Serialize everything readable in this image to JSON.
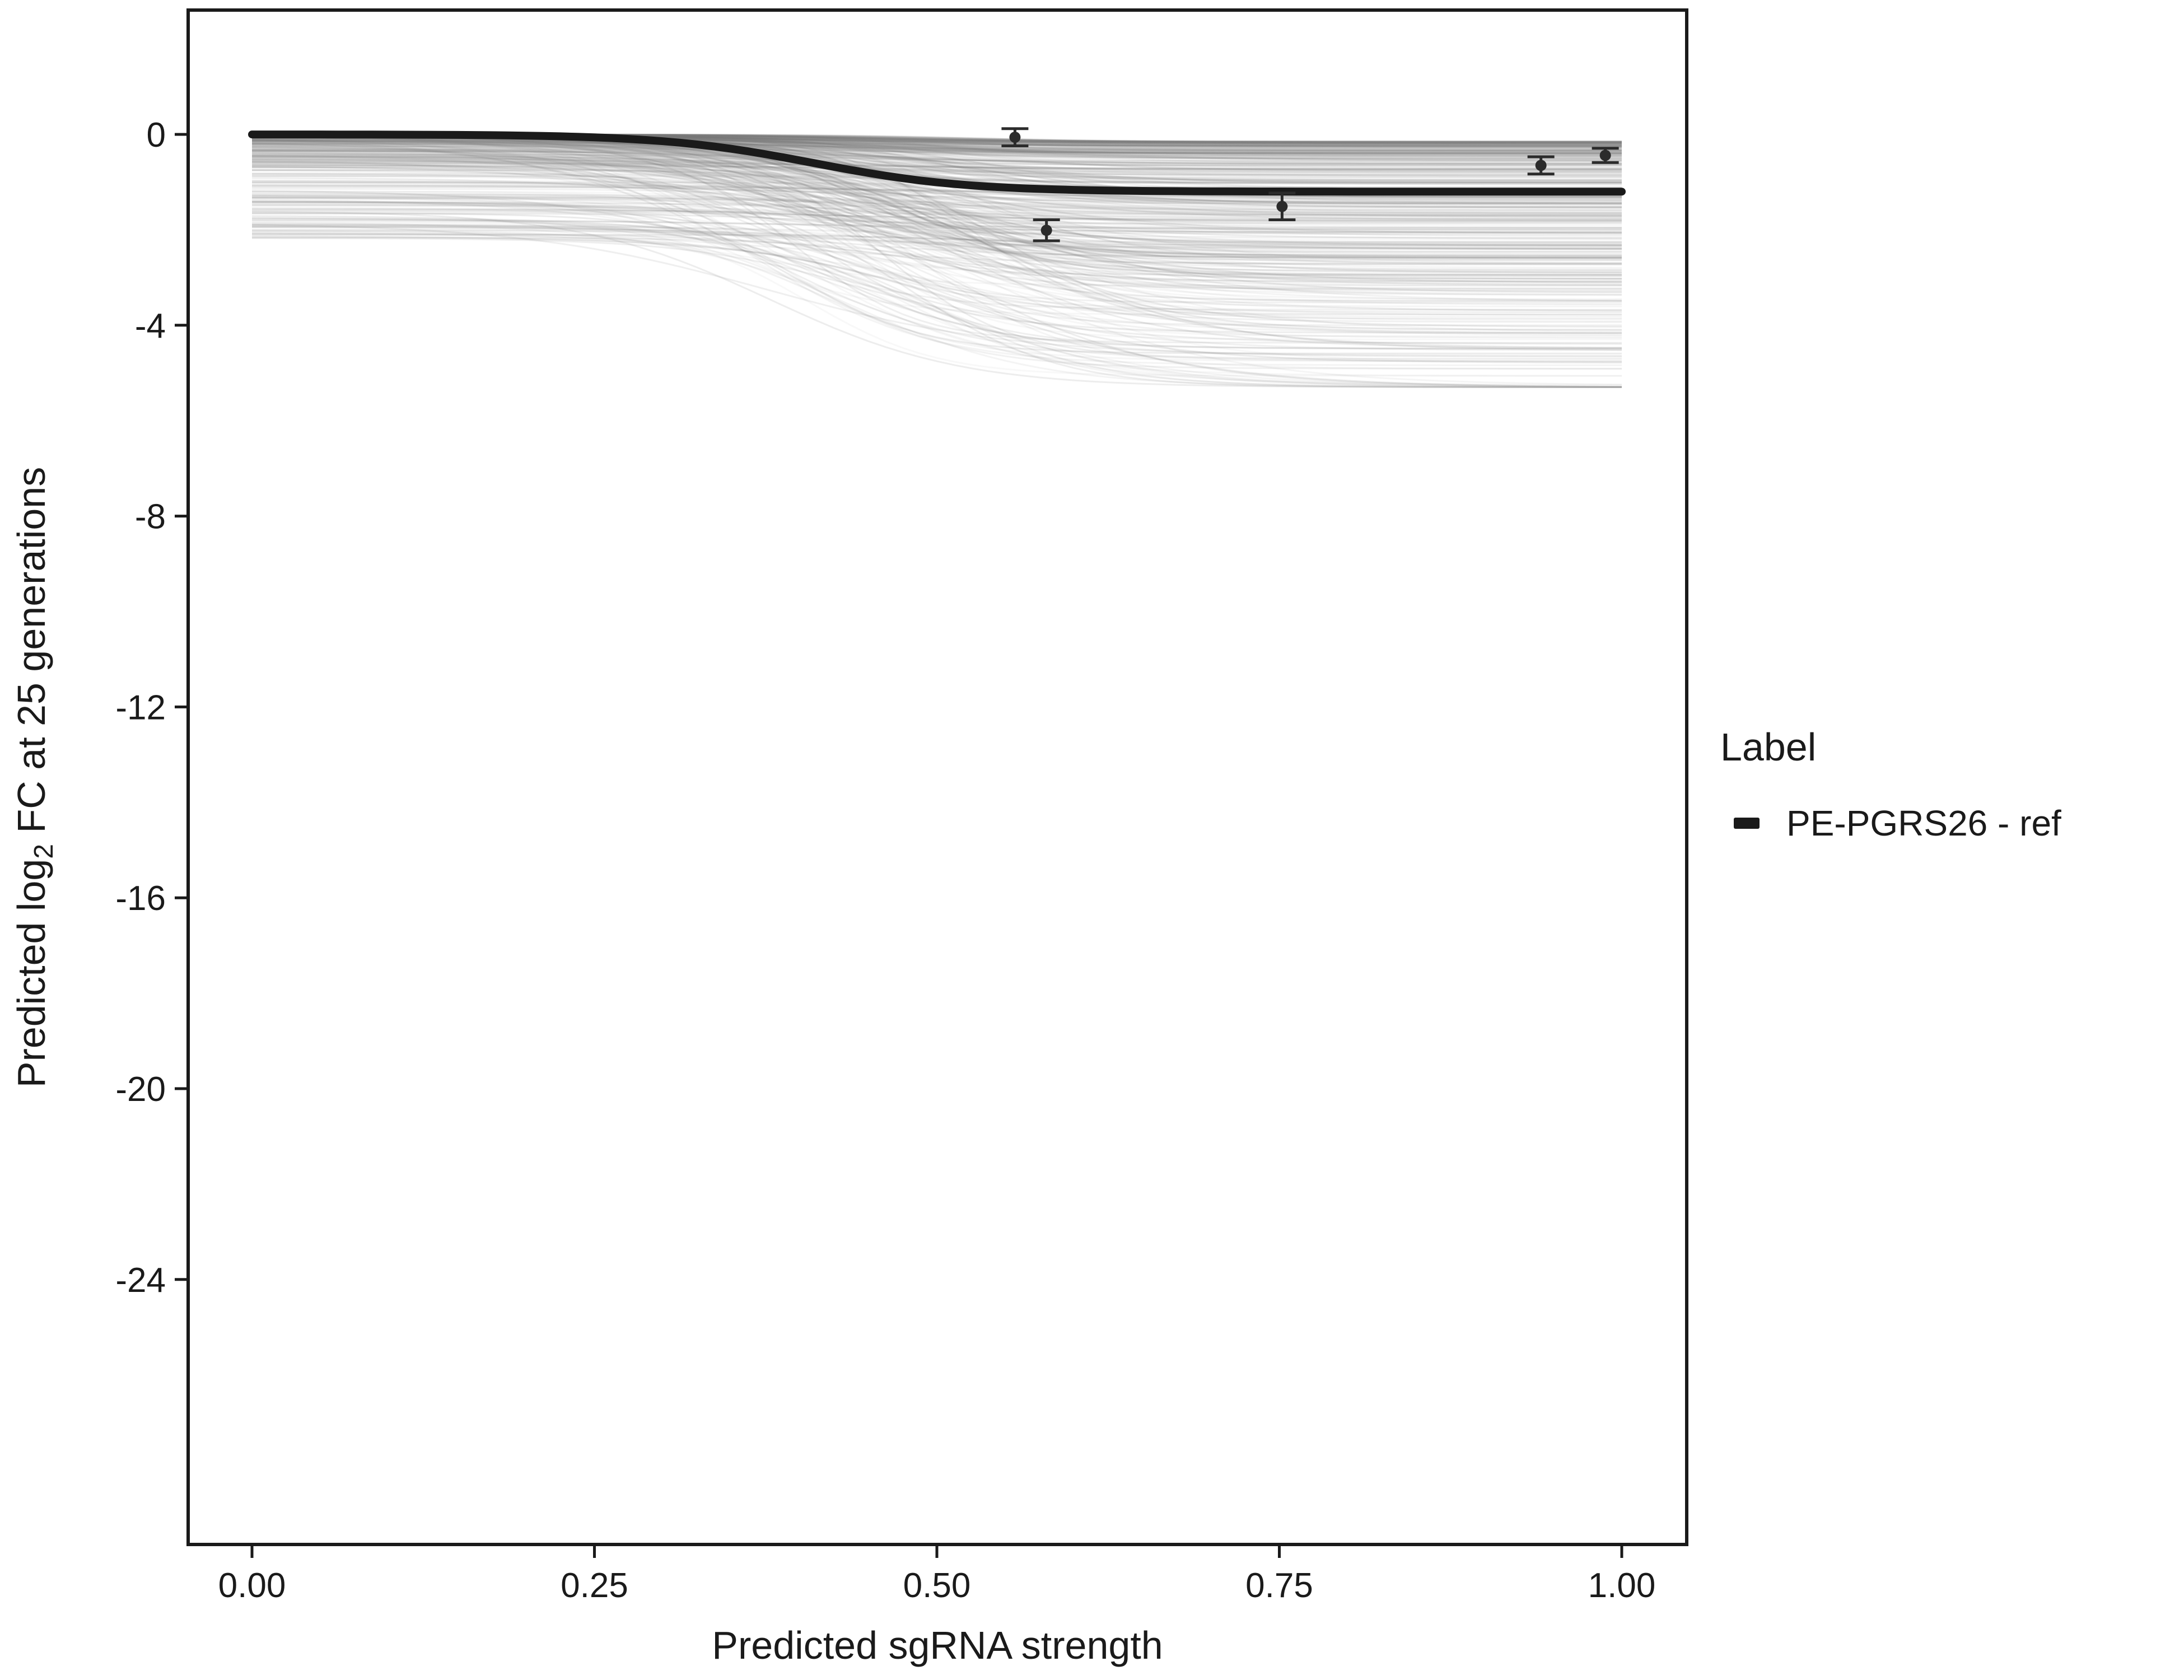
{
  "chart_data": {
    "type": "line",
    "title": "",
    "xlabel": "Predicted sgRNA strength",
    "ylabel": {
      "pre": "Predicted  log",
      "sub": "2",
      "post": " FC at 25 generations"
    },
    "xlim": [
      0,
      1
    ],
    "ylim": [
      -27,
      1
    ],
    "grid": false,
    "x_ticks": {
      "values": [
        0,
        0.25,
        0.5,
        0.75,
        1.0
      ],
      "labels": [
        "0.00",
        "0.25",
        "0.50",
        "0.75",
        "1.00"
      ]
    },
    "y_ticks": {
      "values": [
        0,
        -4,
        -8,
        -12,
        -16,
        -20,
        -24
      ],
      "labels": [
        "0",
        "-4",
        "-8",
        "-12",
        "-16",
        "-20",
        "-24"
      ]
    },
    "legend": {
      "title": "Label",
      "position": "right",
      "entries": [
        {
          "label": "PE-PGRS26 - ref",
          "color": "#1a1a1a"
        }
      ]
    },
    "reference_curve": {
      "name": "PE-PGRS26 - ref",
      "model": "sigmoid",
      "y_start": 0.0,
      "y_end": -1.2,
      "x_mid": 0.41,
      "slope_scale": 0.055,
      "color": "#1a1a1a",
      "width": 14
    },
    "points": [
      {
        "x": 0.557,
        "y": -0.06,
        "se": 0.18
      },
      {
        "x": 0.58,
        "y": -2.01,
        "se": 0.22
      },
      {
        "x": 0.752,
        "y": -1.51,
        "se": 0.28
      },
      {
        "x": 0.941,
        "y": -0.65,
        "se": 0.18
      },
      {
        "x": 0.988,
        "y": -0.44,
        "se": 0.15
      }
    ],
    "ensemble": {
      "description": "posterior draw sigmoid curves (spaghetti)",
      "count": 420,
      "seed": 42,
      "color": "#7a7a7a",
      "stroke_width": 3,
      "y_start_min": -2.2,
      "y_end_min": -5.3,
      "drop_base": 0.15,
      "drop_max_extra": 4.8,
      "x_mid_range": [
        0.36,
        0.54
      ],
      "slope_scale_range": [
        0.045,
        0.095
      ],
      "opacity_range": [
        0.05,
        0.15
      ]
    },
    "colors": {
      "axis_text": "#1a1a1a",
      "panel_border": "#1a1a1a",
      "point": "#2b2b2b",
      "background": "#ffffff"
    }
  }
}
